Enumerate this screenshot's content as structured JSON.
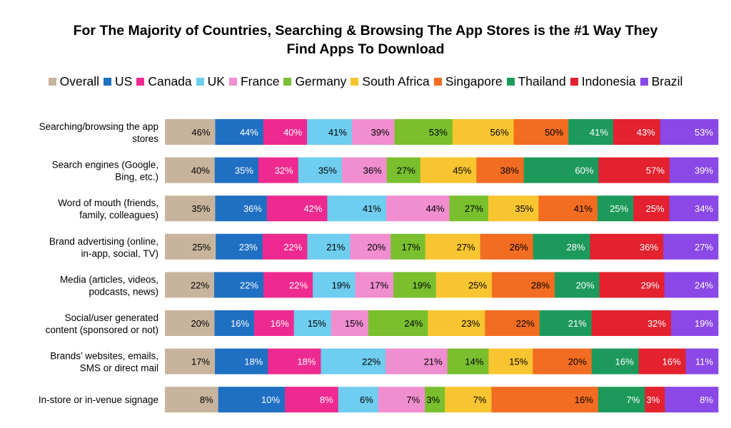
{
  "chart_data": {
    "type": "bar",
    "orientation": "horizontal",
    "stacked": true,
    "title_lines": [
      "For The Majority of Countries, Searching & Browsing The App Stores is the #1 Way They",
      "Find Apps To Download"
    ],
    "legend_position": "top",
    "grid": false,
    "categories": [
      [
        "Searching/browsing the app",
        "stores"
      ],
      [
        "Search engines (Google,",
        "Bing, etc.)"
      ],
      [
        "Word of mouth (friends,",
        "family, colleagues)"
      ],
      [
        "Brand advertising (online,",
        "in-app, social, TV)"
      ],
      [
        "Media (articles, videos,",
        "podcasts, news)"
      ],
      [
        "Social/user generated",
        "content (sponsored or not)"
      ],
      [
        "Brands’ websites, emails,",
        "SMS or direct mail"
      ],
      [
        "In-store or in-venue signage"
      ]
    ],
    "series": [
      {
        "name": "Overall",
        "color": "#c8b49c",
        "label_color": "#000000",
        "values": [
          46,
          40,
          35,
          25,
          22,
          20,
          17,
          8
        ]
      },
      {
        "name": "US",
        "color": "#1f6fc3",
        "label_color": "#ffffff",
        "values": [
          44,
          35,
          36,
          23,
          22,
          16,
          18,
          10
        ]
      },
      {
        "name": "Canada",
        "color": "#ee2a90",
        "label_color": "#ffffff",
        "values": [
          40,
          32,
          42,
          22,
          22,
          16,
          18,
          8
        ]
      },
      {
        "name": "UK",
        "color": "#6fcdef",
        "label_color": "#000000",
        "values": [
          41,
          35,
          41,
          21,
          19,
          15,
          22,
          6
        ]
      },
      {
        "name": "France",
        "color": "#f08ed0",
        "label_color": "#000000",
        "values": [
          39,
          36,
          44,
          20,
          17,
          15,
          21,
          7
        ]
      },
      {
        "name": "Germany",
        "color": "#79bf2e",
        "label_color": "#000000",
        "values": [
          53,
          27,
          27,
          17,
          19,
          24,
          14,
          3
        ]
      },
      {
        "name": "South Africa",
        "color": "#f8c531",
        "label_color": "#000000",
        "values": [
          56,
          45,
          35,
          27,
          25,
          23,
          15,
          7
        ]
      },
      {
        "name": "Singapore",
        "color": "#f26c21",
        "label_color": "#000000",
        "values": [
          50,
          38,
          41,
          26,
          28,
          22,
          20,
          16
        ]
      },
      {
        "name": "Thailand",
        "color": "#1d9a5b",
        "label_color": "#ffffff",
        "values": [
          41,
          60,
          25,
          28,
          20,
          21,
          16,
          7
        ]
      },
      {
        "name": "Indonesia",
        "color": "#e3212f",
        "label_color": "#ffffff",
        "values": [
          43,
          57,
          25,
          36,
          29,
          32,
          16,
          3
        ]
      },
      {
        "name": "Brazil",
        "color": "#8a48e6",
        "label_color": "#ffffff",
        "values": [
          53,
          39,
          34,
          27,
          24,
          19,
          11,
          8
        ]
      }
    ],
    "value_suffix": "%"
  }
}
